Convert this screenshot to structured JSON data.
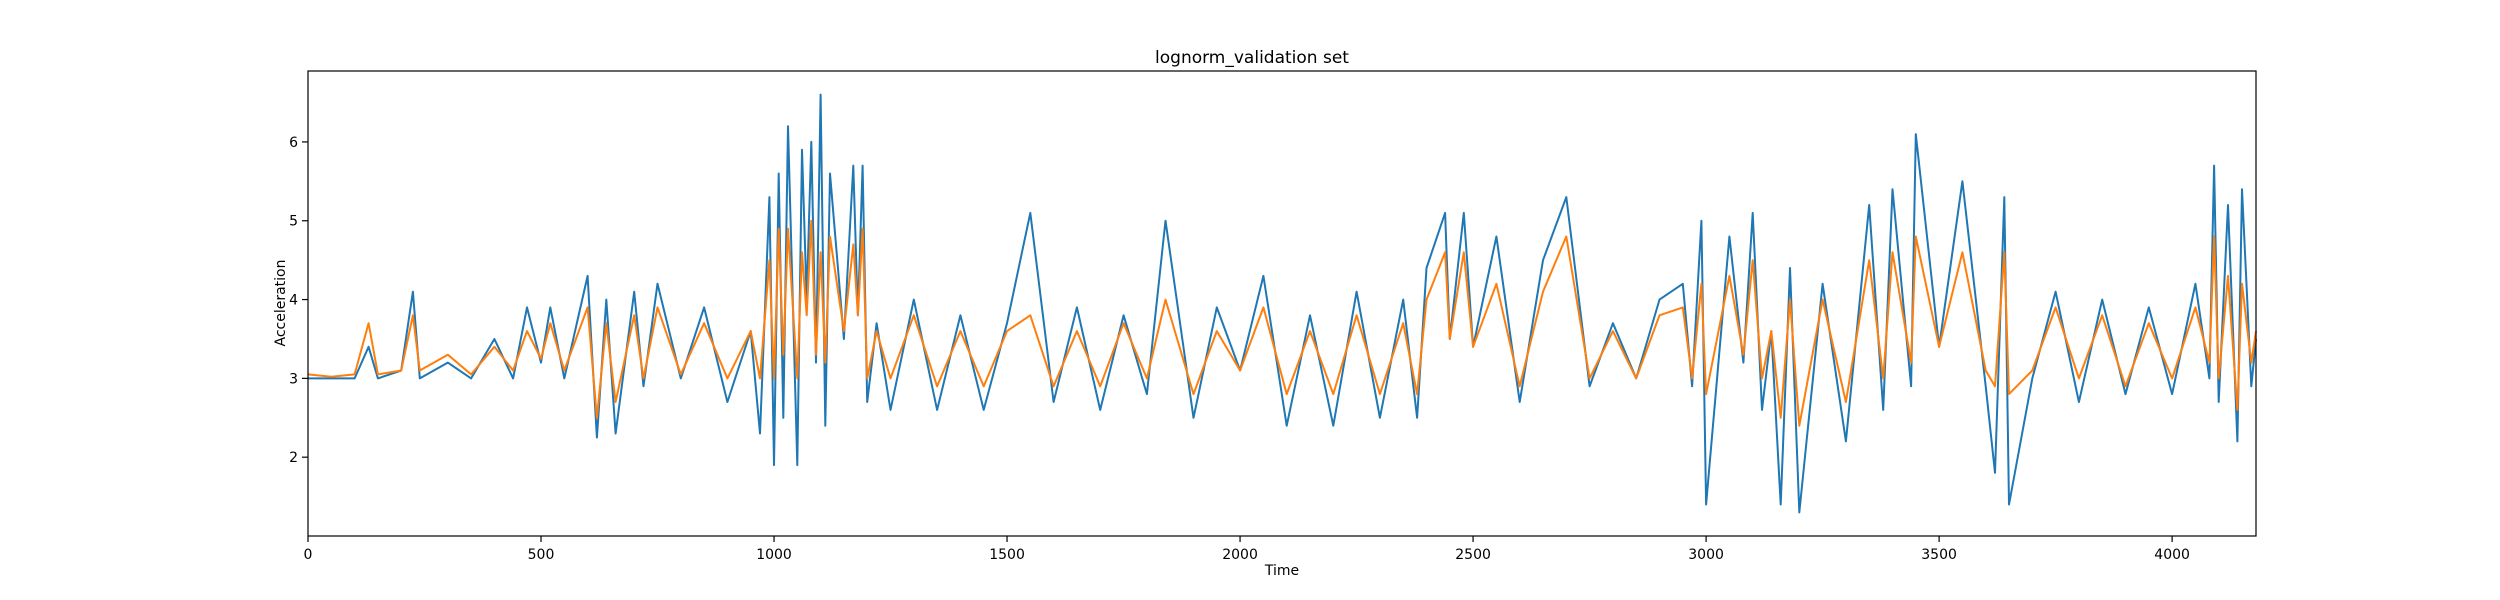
{
  "chart_data": {
    "type": "line",
    "title": "lognorm_validation set",
    "xlabel": "Time",
    "ylabel": "Acceleration",
    "xlim": [
      0,
      4180
    ],
    "ylim": [
      1.0,
      6.9
    ],
    "x_ticks": [
      0,
      500,
      1000,
      1500,
      2000,
      2500,
      3000,
      3500,
      4000
    ],
    "y_ticks": [
      2,
      3,
      4,
      5,
      6
    ],
    "grid": false,
    "legend": "none",
    "colors": {
      "series_1": "#1f77b4",
      "series_2": "#ff7f0e"
    },
    "series": [
      {
        "color": "#1f77b4",
        "x": [
          0,
          50,
          100,
          130,
          150,
          200,
          225,
          240,
          300,
          350,
          400,
          440,
          470,
          500,
          520,
          550,
          600,
          620,
          640,
          660,
          700,
          720,
          750,
          800,
          850,
          900,
          950,
          970,
          990,
          1000,
          1010,
          1020,
          1030,
          1050,
          1060,
          1070,
          1080,
          1090,
          1100,
          1110,
          1120,
          1150,
          1170,
          1180,
          1190,
          1200,
          1220,
          1250,
          1300,
          1350,
          1400,
          1450,
          1500,
          1550,
          1600,
          1650,
          1700,
          1750,
          1800,
          1840,
          1900,
          1950,
          2000,
          2050,
          2100,
          2150,
          2200,
          2250,
          2300,
          2350,
          2380,
          2400,
          2440,
          2450,
          2480,
          2500,
          2550,
          2600,
          2650,
          2700,
          2750,
          2800,
          2850,
          2900,
          2950,
          2970,
          2990,
          3000,
          3050,
          3080,
          3100,
          3120,
          3140,
          3160,
          3180,
          3200,
          3250,
          3300,
          3350,
          3380,
          3400,
          3440,
          3450,
          3500,
          3550,
          3600,
          3620,
          3640,
          3650,
          3700,
          3750,
          3800,
          3850,
          3900,
          3950,
          4000,
          4050,
          4080,
          4090,
          4100,
          4120,
          4140,
          4150,
          4170,
          4180
        ],
        "y": [
          3.0,
          3.0,
          3.0,
          3.4,
          3.0,
          3.1,
          4.1,
          3.0,
          3.2,
          3.0,
          3.5,
          3.0,
          3.9,
          3.2,
          3.9,
          3.0,
          4.3,
          2.25,
          4.0,
          2.3,
          4.1,
          2.9,
          4.2,
          3.0,
          3.9,
          2.7,
          3.6,
          2.3,
          5.3,
          1.9,
          5.6,
          2.5,
          6.2,
          1.9,
          5.9,
          4.0,
          6.0,
          3.2,
          6.6,
          2.4,
          5.6,
          3.5,
          5.7,
          3.8,
          5.7,
          2.7,
          3.7,
          2.6,
          4.0,
          2.6,
          3.8,
          2.6,
          3.7,
          5.1,
          2.7,
          3.9,
          2.6,
          3.8,
          2.8,
          5.0,
          2.5,
          3.9,
          3.1,
          4.3,
          2.4,
          3.8,
          2.4,
          4.1,
          2.5,
          4.0,
          2.5,
          4.4,
          5.1,
          3.5,
          5.1,
          3.4,
          4.8,
          2.7,
          4.5,
          5.3,
          2.9,
          3.7,
          3.0,
          4.0,
          4.2,
          2.9,
          5.0,
          1.4,
          4.8,
          3.2,
          5.1,
          2.6,
          3.6,
          1.4,
          4.4,
          1.3,
          4.2,
          2.2,
          5.2,
          2.6,
          5.4,
          2.9,
          6.1,
          3.4,
          5.5,
          2.9,
          1.8,
          5.3,
          1.4,
          3.0,
          4.1,
          2.7,
          4.0,
          2.8,
          3.9,
          2.8,
          4.2,
          3.0,
          5.7,
          2.7,
          5.2,
          2.2,
          5.4,
          2.9,
          3.5
        ]
      },
      {
        "color": "#ff7f0e",
        "x": [
          0,
          50,
          100,
          130,
          150,
          200,
          225,
          240,
          300,
          350,
          400,
          440,
          470,
          500,
          520,
          550,
          600,
          620,
          640,
          660,
          700,
          720,
          750,
          800,
          850,
          900,
          950,
          970,
          990,
          1000,
          1010,
          1020,
          1030,
          1050,
          1060,
          1070,
          1080,
          1090,
          1100,
          1110,
          1120,
          1150,
          1170,
          1180,
          1190,
          1200,
          1220,
          1250,
          1300,
          1350,
          1400,
          1450,
          1500,
          1550,
          1600,
          1650,
          1700,
          1750,
          1800,
          1840,
          1900,
          1950,
          2000,
          2050,
          2100,
          2150,
          2200,
          2250,
          2300,
          2350,
          2380,
          2400,
          2440,
          2450,
          2480,
          2500,
          2550,
          2600,
          2650,
          2700,
          2750,
          2800,
          2850,
          2900,
          2950,
          2970,
          2990,
          3000,
          3050,
          3080,
          3100,
          3120,
          3140,
          3160,
          3180,
          3200,
          3250,
          3300,
          3350,
          3380,
          3400,
          3440,
          3450,
          3500,
          3550,
          3600,
          3620,
          3640,
          3650,
          3700,
          3750,
          3800,
          3850,
          3900,
          3950,
          4000,
          4050,
          4080,
          4090,
          4100,
          4120,
          4140,
          4150,
          4170,
          4180
        ],
        "y": [
          3.05,
          3.02,
          3.05,
          3.7,
          3.05,
          3.1,
          3.8,
          3.1,
          3.3,
          3.05,
          3.4,
          3.1,
          3.6,
          3.25,
          3.7,
          3.1,
          3.9,
          2.5,
          3.7,
          2.7,
          3.8,
          3.0,
          3.9,
          3.05,
          3.7,
          3.0,
          3.6,
          3.0,
          4.5,
          3.0,
          4.9,
          3.3,
          4.9,
          3.0,
          4.6,
          3.8,
          5.0,
          3.3,
          4.6,
          3.2,
          4.8,
          3.6,
          4.7,
          3.8,
          4.9,
          3.0,
          3.6,
          3.0,
          3.8,
          2.9,
          3.6,
          2.9,
          3.6,
          3.8,
          2.9,
          3.6,
          2.9,
          3.7,
          3.0,
          4.0,
          2.8,
          3.6,
          3.1,
          3.9,
          2.8,
          3.6,
          2.8,
          3.8,
          2.8,
          3.7,
          2.8,
          4.0,
          4.6,
          3.5,
          4.6,
          3.4,
          4.2,
          2.9,
          4.1,
          4.8,
          3.0,
          3.6,
          3.0,
          3.8,
          3.9,
          3.0,
          4.2,
          2.8,
          4.3,
          3.3,
          4.5,
          3.0,
          3.6,
          2.5,
          4.0,
          2.4,
          4.0,
          2.7,
          4.5,
          3.0,
          4.6,
          3.2,
          4.8,
          3.4,
          4.6,
          3.1,
          2.9,
          4.6,
          2.8,
          3.1,
          3.9,
          3.0,
          3.8,
          2.9,
          3.7,
          3.0,
          3.9,
          3.2,
          4.8,
          3.0,
          4.3,
          2.6,
          4.2,
          3.2,
          3.6
        ]
      }
    ]
  }
}
